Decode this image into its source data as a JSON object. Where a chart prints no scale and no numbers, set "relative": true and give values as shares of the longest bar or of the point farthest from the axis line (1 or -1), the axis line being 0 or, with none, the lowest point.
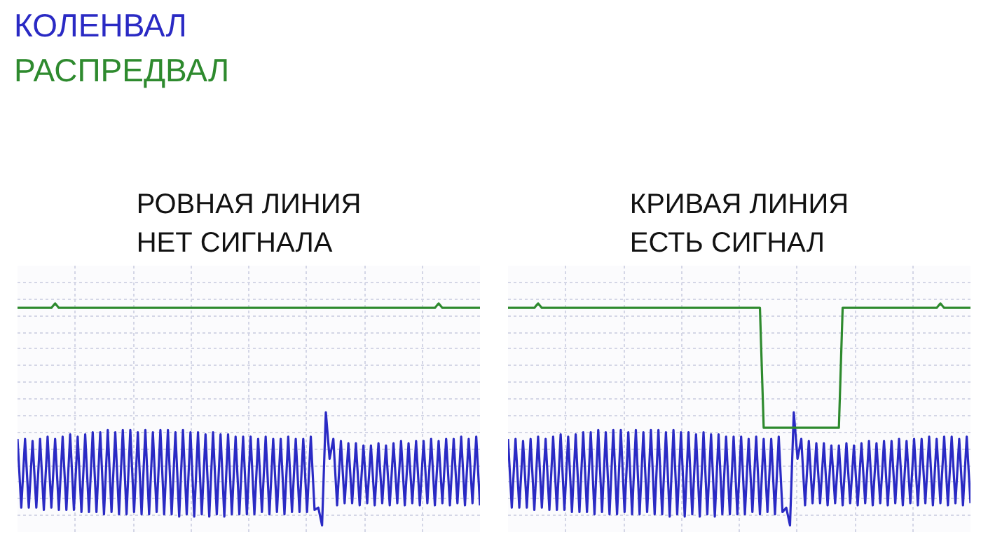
{
  "chart_data": [
    {
      "type": "line",
      "title": "РОВНАЯ ЛИНИЯ\nНЕТ СИГНАЛА",
      "relative": true,
      "grid": true,
      "legend": "top left",
      "categories": [
        null,
        null,
        null,
        null,
        null,
        null,
        null,
        null,
        null,
        null,
        null,
        null,
        null,
        null,
        null,
        null,
        null,
        null,
        null,
        null,
        null,
        null,
        null,
        null,
        null,
        null,
        null,
        null,
        null,
        null,
        null,
        null,
        null,
        null,
        null,
        null,
        null,
        null,
        null,
        null,
        null,
        null,
        null,
        null,
        null,
        null,
        null,
        null,
        null,
        null,
        null,
        null,
        null,
        null,
        null,
        null,
        null,
        null,
        null,
        null,
        null,
        null,
        null,
        null,
        null,
        null,
        null,
        null,
        null,
        null,
        null,
        null,
        null,
        null,
        null,
        null,
        null,
        null,
        null,
        null,
        null,
        null,
        null,
        null,
        null,
        null,
        null,
        null,
        null,
        null,
        null,
        null,
        null,
        null,
        null,
        null,
        null,
        null,
        null,
        null,
        null,
        null,
        null,
        null,
        null,
        null,
        null,
        null,
        null,
        null,
        null,
        null,
        null,
        null,
        null,
        null,
        null,
        null,
        null,
        null,
        null,
        null,
        null,
        null
      ],
      "series": [
        {
          "name": "КОЛЕНВАЛ",
          "color": "#2a2ac4",
          "values": [
            0.39,
            0.08,
            0.39,
            0.08,
            0.38,
            0.08,
            0.39,
            0.07,
            0.4,
            0.08,
            0.39,
            0.07,
            0.4,
            0.07,
            0.41,
            0.07,
            0.4,
            0.06,
            0.41,
            0.06,
            0.42,
            0.06,
            0.42,
            0.05,
            0.43,
            0.06,
            0.42,
            0.05,
            0.43,
            0.05,
            0.43,
            0.06,
            0.42,
            0.05,
            0.43,
            0.05,
            0.42,
            0.06,
            0.43,
            0.05,
            0.43,
            0.05,
            0.42,
            0.04,
            0.43,
            0.05,
            0.42,
            0.04,
            0.42,
            0.05,
            0.41,
            0.04,
            0.42,
            0.05,
            0.41,
            0.04,
            0.41,
            0.05,
            0.4,
            0.05,
            0.4,
            0.05,
            0.4,
            0.05,
            0.39,
            0.06,
            0.4,
            0.05,
            0.39,
            0.06,
            0.39,
            0.05,
            0.4,
            0.06,
            0.39,
            0.06,
            0.39,
            0.06,
            0.4,
            0.07,
            0.08,
            0.0,
            0.51,
            0.3,
            0.39,
            0.09,
            0.38,
            0.1,
            0.37,
            0.1,
            0.37,
            0.09,
            0.36,
            0.1,
            0.36,
            0.09,
            0.37,
            0.1,
            0.36,
            0.09,
            0.37,
            0.1,
            0.38,
            0.09,
            0.37,
            0.1,
            0.38,
            0.09,
            0.38,
            0.1,
            0.39,
            0.09,
            0.38,
            0.1,
            0.39,
            0.09,
            0.39,
            0.1,
            0.4,
            0.09,
            0.39,
            0.1,
            0.4,
            0.09
          ]
        },
        {
          "name": "РАСПРЕДВАЛ",
          "color": "#2e8a2e",
          "values": [
            0.98,
            0.98,
            0.98,
            0.98,
            0.98,
            0.98,
            0.98,
            0.98,
            0.98,
            0.98,
            1,
            0.98,
            0.98,
            0.98,
            0.98,
            0.98,
            0.98,
            0.98,
            0.98,
            0.98,
            0.98,
            0.98,
            0.98,
            0.98,
            0.98,
            0.98,
            0.98,
            0.98,
            0.98,
            0.98,
            0.98,
            0.98,
            0.98,
            0.98,
            0.98,
            0.98,
            0.98,
            0.98,
            0.98,
            0.98,
            0.98,
            0.98,
            0.98,
            0.98,
            0.98,
            0.98,
            0.98,
            0.98,
            0.98,
            0.98,
            0.98,
            0.98,
            0.98,
            0.98,
            0.98,
            0.98,
            0.98,
            0.98,
            0.98,
            0.98,
            0.98,
            0.98,
            0.98,
            0.98,
            0.98,
            0.98,
            0.98,
            0.98,
            0.98,
            0.98,
            0.98,
            0.98,
            0.98,
            0.98,
            0.98,
            0.98,
            0.98,
            0.98,
            0.98,
            0.98,
            0.98,
            0.98,
            0.98,
            0.98,
            0.98,
            0.98,
            0.98,
            0.98,
            0.98,
            0.98,
            0.98,
            0.98,
            0.98,
            0.98,
            0.98,
            0.98,
            0.98,
            0.98,
            0.98,
            0.98,
            0.98,
            0.98,
            0.98,
            0.98,
            0.98,
            0.98,
            0.98,
            0.98,
            0.98,
            0.98,
            0.98,
            0.98,
            1,
            0.98,
            0.98,
            0.98,
            0.98,
            0.98,
            0.98,
            0.98,
            0.98,
            0.98,
            0.98,
            0.98
          ]
        }
      ]
    },
    {
      "type": "line",
      "title": "КРИВАЯ ЛИНИЯ\nЕСТЬ СИГНАЛ",
      "relative": true,
      "grid": true,
      "categories": [
        null,
        null,
        null,
        null,
        null,
        null,
        null,
        null,
        null,
        null,
        null,
        null,
        null,
        null,
        null,
        null,
        null,
        null,
        null,
        null,
        null,
        null,
        null,
        null,
        null,
        null,
        null,
        null,
        null,
        null,
        null,
        null,
        null,
        null,
        null,
        null,
        null,
        null,
        null,
        null,
        null,
        null,
        null,
        null,
        null,
        null,
        null,
        null,
        null,
        null,
        null,
        null,
        null,
        null,
        null,
        null,
        null,
        null,
        null,
        null,
        null,
        null,
        null,
        null,
        null,
        null,
        null,
        null,
        null,
        null,
        null,
        null,
        null,
        null,
        null,
        null,
        null,
        null,
        null,
        null,
        null,
        null,
        null,
        null,
        null,
        null,
        null,
        null,
        null,
        null,
        null,
        null,
        null,
        null,
        null,
        null,
        null,
        null,
        null,
        null,
        null,
        null,
        null,
        null,
        null,
        null,
        null,
        null,
        null,
        null,
        null,
        null,
        null,
        null,
        null,
        null,
        null,
        null,
        null,
        null,
        null,
        null,
        null,
        null
      ],
      "series": [
        {
          "color": "#2a2ac4",
          "values": [
            0.39,
            0.08,
            0.39,
            0.08,
            0.38,
            0.08,
            0.39,
            0.07,
            0.4,
            0.08,
            0.39,
            0.07,
            0.4,
            0.07,
            0.41,
            0.07,
            0.4,
            0.06,
            0.41,
            0.06,
            0.42,
            0.06,
            0.42,
            0.05,
            0.43,
            0.06,
            0.42,
            0.05,
            0.43,
            0.05,
            0.43,
            0.06,
            0.42,
            0.05,
            0.43,
            0.05,
            0.42,
            0.06,
            0.43,
            0.05,
            0.43,
            0.05,
            0.42,
            0.04,
            0.43,
            0.05,
            0.42,
            0.04,
            0.42,
            0.05,
            0.41,
            0.04,
            0.42,
            0.05,
            0.41,
            0.04,
            0.41,
            0.05,
            0.4,
            0.05,
            0.4,
            0.05,
            0.4,
            0.05,
            0.39,
            0.06,
            0.4,
            0.05,
            0.39,
            0.06,
            0.39,
            0.05,
            0.4,
            0.06,
            0.08,
            0.0,
            0.51,
            0.3,
            0.39,
            0.09,
            0.38,
            0.1,
            0.37,
            0.1,
            0.37,
            0.09,
            0.36,
            0.1,
            0.36,
            0.09,
            0.37,
            0.1,
            0.36,
            0.09,
            0.37,
            0.1,
            0.38,
            0.09,
            0.37,
            0.1,
            0.38,
            0.09,
            0.38,
            0.1,
            0.39,
            0.09,
            0.38,
            0.1,
            0.39,
            0.09,
            0.39,
            0.1,
            0.4,
            0.09,
            0.39,
            0.1,
            0.4,
            0.09,
            0.4,
            0.1,
            0.39,
            0.09,
            0.4,
            0.1
          ]
        },
        {
          "color": "#2e8a2e",
          "values": [
            0.98,
            0.98,
            0.98,
            0.98,
            0.98,
            0.98,
            0.98,
            0.98,
            1,
            0.98,
            0.98,
            0.98,
            0.98,
            0.98,
            0.98,
            0.98,
            0.98,
            0.98,
            0.98,
            0.98,
            0.98,
            0.98,
            0.98,
            0.98,
            0.98,
            0.98,
            0.98,
            0.98,
            0.98,
            0.98,
            0.98,
            0.98,
            0.98,
            0.98,
            0.98,
            0.98,
            0.98,
            0.98,
            0.98,
            0.98,
            0.98,
            0.98,
            0.98,
            0.98,
            0.98,
            0.98,
            0.98,
            0.98,
            0.98,
            0.98,
            0.98,
            0.98,
            0.98,
            0.98,
            0.98,
            0.98,
            0.98,
            0.98,
            0.98,
            0.98,
            0.98,
            0.98,
            0.98,
            0.98,
            0.98,
            0.98,
            0.98,
            0.98,
            0.44,
            0.44,
            0.44,
            0.44,
            0.44,
            0.44,
            0.44,
            0.44,
            0.44,
            0.44,
            0.44,
            0.44,
            0.44,
            0.44,
            0.44,
            0.44,
            0.44,
            0.44,
            0.44,
            0.44,
            0.44,
            0.98,
            0.98,
            0.98,
            0.98,
            0.98,
            0.98,
            0.98,
            0.98,
            0.98,
            0.98,
            0.98,
            0.98,
            0.98,
            0.98,
            0.98,
            0.98,
            0.98,
            0.98,
            0.98,
            0.98,
            0.98,
            0.98,
            0.98,
            0.98,
            0.98,
            0.98,
            1,
            0.98,
            0.98,
            0.98,
            0.98,
            0.98,
            0.98,
            0.98,
            0.98
          ]
        }
      ]
    }
  ]
}
